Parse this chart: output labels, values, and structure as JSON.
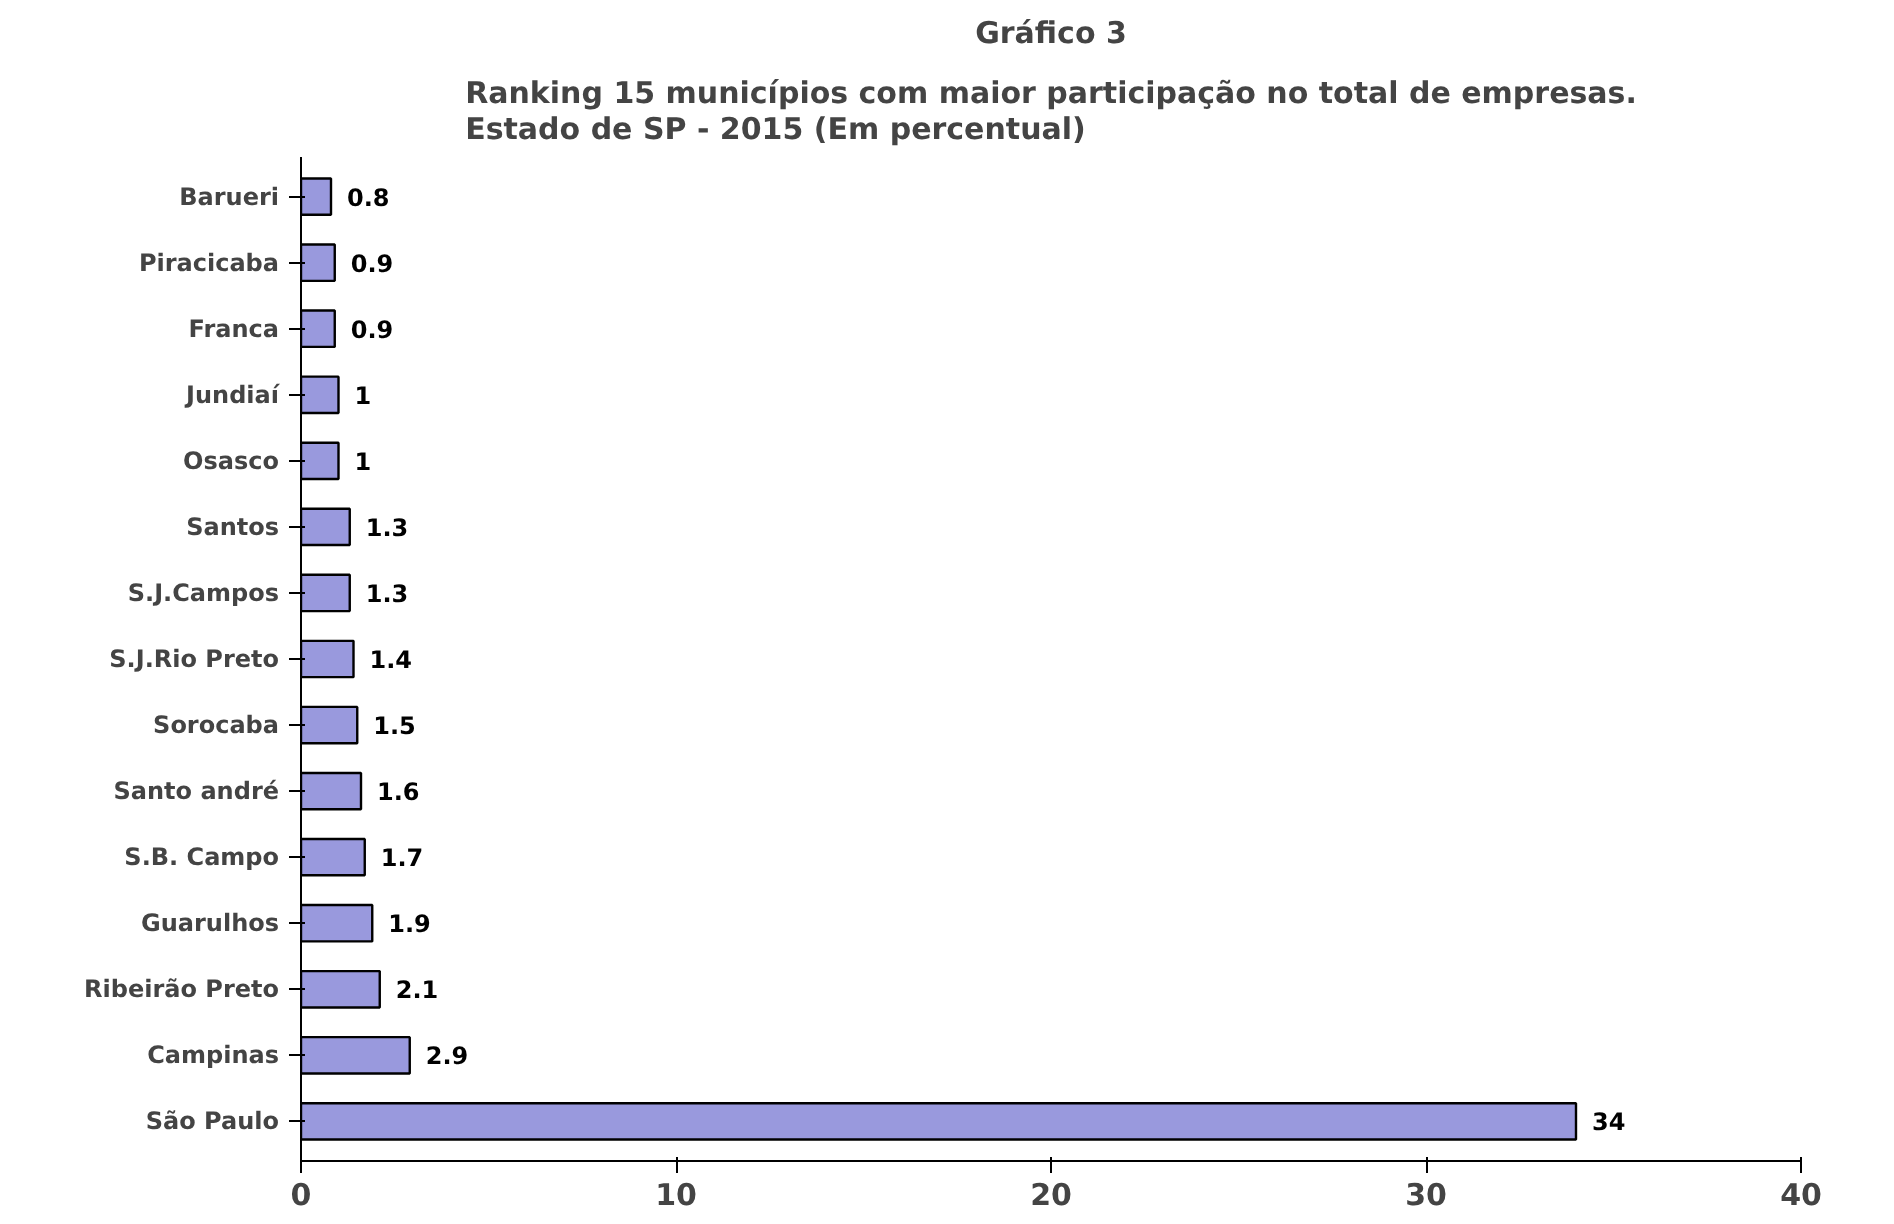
{
  "chart_data": {
    "type": "bar",
    "orientation": "horizontal",
    "title": "Gráfico 3",
    "subtitle": "Ranking 15 municípios com maior participação no total de empresas.\nEstado de SP - 2015 (Em percentual)",
    "categories": [
      "Barueri",
      "Piracicaba",
      "Franca",
      "Jundiaí",
      "Osasco",
      "Santos",
      "S.J.Campos",
      "S.J.Rio Preto",
      "Sorocaba",
      "Santo andré",
      "S.B. Campo",
      "Guarulhos",
      "Ribeirão Preto",
      "Campinas",
      "São Paulo"
    ],
    "values": [
      0.8,
      0.9,
      0.9,
      1,
      1,
      1.3,
      1.3,
      1.4,
      1.5,
      1.6,
      1.7,
      1.9,
      2.1,
      2.9,
      34
    ],
    "color": "#9999dd",
    "xlim": [
      0,
      40
    ],
    "xticks": [
      0,
      10,
      20,
      30,
      40
    ],
    "grid": false,
    "data_labels": true
  }
}
